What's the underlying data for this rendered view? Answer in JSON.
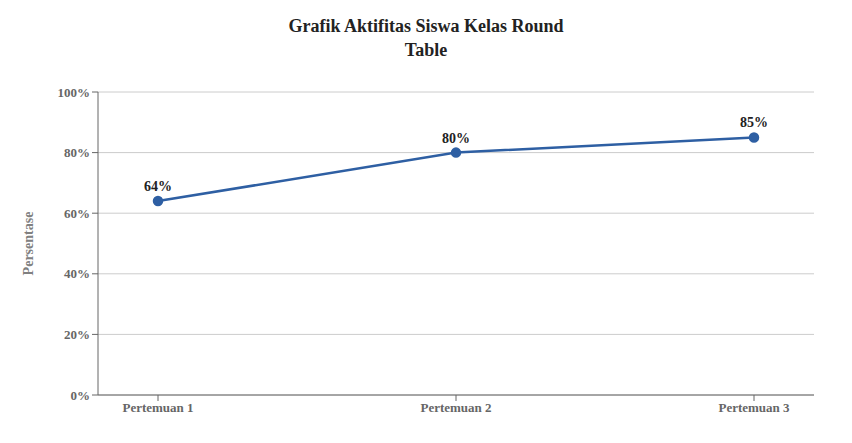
{
  "chart_data": {
    "type": "line",
    "title": "Grafik Aktifitas Siswa Kelas Round\nTable",
    "y_label": "Persentase",
    "categories": [
      "Pertemuan 1",
      "Pertemuan 2",
      "Pertemuan 3"
    ],
    "values": [
      64,
      80,
      85
    ],
    "value_labels": [
      "64%",
      "80%",
      "85%"
    ],
    "color": "#2E5FA3",
    "marker": "circle",
    "ylim": [
      0,
      100
    ],
    "yticks": [
      {
        "value": 0,
        "label": "0%"
      },
      {
        "value": 20,
        "label": "20%"
      },
      {
        "value": 40,
        "label": "40%"
      },
      {
        "value": 60,
        "label": "60%"
      },
      {
        "value": 80,
        "label": "80%"
      },
      {
        "value": 100,
        "label": "100%"
      }
    ],
    "grid": true,
    "data_labels": true
  }
}
